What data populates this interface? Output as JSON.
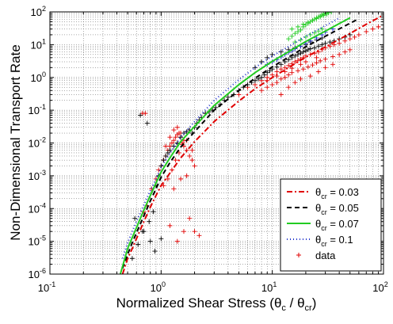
{
  "chart_data": {
    "type": "scatter",
    "title": "",
    "xlabel": {
      "base": "Normalized Shear Stress (θ",
      "sub1": "c",
      "mid": " / θ",
      "sub2": "cr",
      "end": ")"
    },
    "ylabel": "Non-Dimensional Transport Rate",
    "x_scale": "log",
    "y_scale": "log",
    "xlim": [
      0.1,
      100
    ],
    "ylim": [
      1e-06,
      100
    ],
    "x_ticks": [
      {
        "value": 0.1,
        "base": "10",
        "exp": "-1"
      },
      {
        "value": 1,
        "base": "10",
        "exp": "0"
      },
      {
        "value": 10,
        "base": "10",
        "exp": "1"
      },
      {
        "value": 100,
        "base": "10",
        "exp": "2"
      }
    ],
    "y_ticks": [
      {
        "value": 1e-06,
        "base": "10",
        "exp": "-6"
      },
      {
        "value": 1e-05,
        "base": "10",
        "exp": "-5"
      },
      {
        "value": 0.0001,
        "base": "10",
        "exp": "-4"
      },
      {
        "value": 0.001,
        "base": "10",
        "exp": "-3"
      },
      {
        "value": 0.01,
        "base": "10",
        "exp": "-2"
      },
      {
        "value": 0.1,
        "base": "10",
        "exp": "-1"
      },
      {
        "value": 1,
        "base": "10",
        "exp": "0"
      },
      {
        "value": 10,
        "base": "10",
        "exp": "1"
      },
      {
        "value": 100,
        "base": "10",
        "exp": "2"
      }
    ],
    "grid": true,
    "legend_position": "bottom-right",
    "series": [
      {
        "kind": "line",
        "theta_cr": 0.03,
        "label": {
          "pre": "θ",
          "sub": "cr",
          "post": " = 0.03"
        },
        "color": "#e00000",
        "dash": "7,3,2,3",
        "x": [
          0.45,
          0.5,
          0.55,
          0.6,
          0.7,
          0.8,
          0.9,
          1.0,
          1.2,
          1.5,
          2,
          3,
          5,
          7,
          10,
          15,
          20,
          30,
          50,
          70,
          100
        ],
        "y": [
          1e-06,
          3e-06,
          6e-06,
          1.2e-05,
          4e-05,
          0.00011,
          0.00025,
          0.0005,
          0.0012,
          0.0035,
          0.011,
          0.045,
          0.19,
          0.45,
          1.0,
          2.3,
          4.2,
          8.5,
          22,
          42,
          80
        ]
      },
      {
        "kind": "line",
        "theta_cr": 0.05,
        "label": {
          "pre": "θ",
          "sub": "cr",
          "post": " = 0.05"
        },
        "color": "#000000",
        "dash": "6,4",
        "x": [
          0.45,
          0.5,
          0.55,
          0.6,
          0.7,
          0.8,
          0.9,
          1.0,
          1.2,
          1.5,
          2,
          3,
          5,
          7,
          10,
          15,
          20,
          30,
          50,
          60
        ],
        "y": [
          1.5e-06,
          4e-06,
          9e-06,
          1.8e-05,
          6e-05,
          0.00017,
          0.0004,
          0.0009,
          0.0025,
          0.0075,
          0.022,
          0.1,
          0.4,
          0.95,
          2.1,
          4.8,
          8.6,
          18,
          45,
          62
        ]
      },
      {
        "kind": "line",
        "theta_cr": 0.07,
        "label": {
          "pre": "θ",
          "sub": "cr",
          "post": " = 0.07"
        },
        "color": "#22cc22",
        "dash": "",
        "x": [
          0.43,
          0.5,
          0.55,
          0.6,
          0.7,
          0.8,
          0.9,
          1.0,
          1.2,
          1.5,
          2,
          3,
          5,
          7,
          10,
          15,
          20,
          30,
          40,
          50
        ],
        "y": [
          1e-06,
          6e-06,
          1.3e-05,
          2.6e-05,
          9e-05,
          0.00025,
          0.0006,
          0.0013,
          0.0035,
          0.011,
          0.032,
          0.14,
          0.6,
          1.4,
          3.1,
          7,
          12.5,
          26,
          44,
          66
        ]
      },
      {
        "kind": "line",
        "theta_cr": 0.1,
        "label": {
          "pre": "θ",
          "sub": "cr",
          "post": " = 0.1"
        },
        "color": "#2233cc",
        "dash": "1,3",
        "x": [
          0.45,
          0.5,
          0.55,
          0.6,
          0.7,
          0.8,
          0.9,
          1.0,
          1.2,
          1.5,
          2,
          3,
          5,
          7,
          10,
          15,
          20,
          30,
          40
        ],
        "y": [
          3e-06,
          9e-06,
          2e-05,
          4e-05,
          0.00013,
          0.00035,
          0.0008,
          0.0018,
          0.0048,
          0.015,
          0.045,
          0.2,
          0.85,
          2.0,
          4.5,
          10,
          18,
          38,
          65
        ]
      },
      {
        "kind": "scatter",
        "label": "data",
        "color": "#e00000",
        "x": [
          0.7,
          0.75,
          0.82,
          0.9,
          0.95,
          1.0,
          1.05,
          1.1,
          1.15,
          1.2,
          1.25,
          1.3,
          1.35,
          1.4,
          1.45,
          1.5,
          1.55,
          1.6,
          1.7,
          1.8,
          1.9,
          2.0,
          1.1,
          1.2,
          1.3,
          1.4,
          1.5,
          1.6,
          1.25,
          1.35,
          1.45,
          1.55,
          1.7,
          1.9,
          1.05,
          1.15,
          1.3,
          1.5,
          1.7,
          0.68,
          0.72,
          1.2,
          1.4,
          1.6,
          1.8,
          2.0,
          2.2,
          5,
          6,
          7,
          8,
          9,
          10,
          11,
          12,
          13,
          14,
          15,
          16,
          17,
          18,
          19,
          20,
          22,
          24,
          26,
          28,
          30,
          33,
          36,
          40,
          45,
          50,
          55,
          60,
          70,
          80,
          90,
          8,
          9,
          10,
          11,
          12,
          13,
          14,
          15,
          17,
          19,
          21,
          23,
          25,
          27,
          30,
          35,
          40,
          45,
          50,
          9,
          11,
          13,
          15,
          18,
          20,
          25,
          12,
          14,
          16,
          18,
          22,
          26,
          30,
          35
        ],
        "y": [
          8e-05,
          0.00012,
          0.0004,
          0.0008,
          0.0015,
          0.002,
          0.003,
          0.004,
          0.006,
          0.008,
          0.01,
          0.012,
          0.015,
          0.018,
          0.02,
          0.015,
          0.01,
          0.008,
          0.006,
          0.004,
          0.003,
          0.002,
          0.008,
          0.015,
          0.025,
          0.03,
          0.02,
          0.012,
          0.0015,
          0.003,
          0.005,
          0.009,
          0.012,
          0.006,
          0.0005,
          0.0008,
          0.0004,
          0.0008,
          0.001,
          0.08,
          0.08,
          3e-05,
          1e-05,
          2e-05,
          5e-05,
          2e-05,
          1.5e-05,
          0.3,
          0.5,
          0.6,
          0.8,
          1.0,
          1.2,
          1.5,
          1.8,
          2.0,
          2.3,
          2.6,
          3.0,
          3.3,
          3.6,
          4.0,
          4.5,
          5,
          5.5,
          6,
          7,
          8,
          9,
          10,
          11,
          13,
          15,
          17,
          20,
          25,
          30,
          35,
          0.4,
          0.5,
          0.6,
          0.7,
          0.9,
          1.0,
          1.2,
          1.4,
          1.6,
          1.8,
          2.1,
          2.4,
          2.8,
          3.2,
          3.6,
          4.3,
          5,
          6,
          7,
          0.8,
          1.1,
          1.5,
          1.9,
          2.5,
          3.0,
          4.0,
          0.3,
          0.5,
          0.7,
          0.9,
          1.1,
          1.5,
          2.0,
          2.5
        ]
      },
      {
        "kind": "scatter",
        "label": "",
        "color": "#000000",
        "x": [
          0.55,
          0.62,
          0.7,
          0.78,
          0.85,
          0.9,
          0.95,
          1.0,
          1.05,
          1.1,
          1.15,
          1.2,
          1.3,
          1.4,
          1.5,
          1.6,
          1.7,
          1.8,
          1.9,
          2.0,
          2.1,
          2.2,
          2.3,
          2.5,
          2.7,
          2.9,
          3.1,
          3.4,
          3.7,
          4,
          4.5,
          5,
          5.5,
          6,
          6.5,
          7,
          7.5,
          8,
          8.5,
          9,
          9.5,
          10,
          11,
          12,
          13,
          14,
          15,
          16,
          17,
          18,
          19,
          20,
          21,
          22,
          24,
          26,
          28,
          30,
          33,
          36,
          40,
          45,
          50,
          0.65,
          0.75,
          0.58,
          0.68,
          0.8,
          0.88,
          1.0,
          7,
          8,
          9,
          10,
          12,
          14,
          16,
          18,
          20,
          22,
          25,
          28
        ],
        "y": [
          3e-06,
          8e-06,
          2e-05,
          4e-05,
          8e-05,
          0.0005,
          0.001,
          0.002,
          0.003,
          0.004,
          0.005,
          0.006,
          0.008,
          0.01,
          0.015,
          0.02,
          0.022,
          0.025,
          0.02,
          0.03,
          0.04,
          0.05,
          0.06,
          0.08,
          0.09,
          0.1,
          0.12,
          0.15,
          0.2,
          0.25,
          0.3,
          0.4,
          0.5,
          0.6,
          0.7,
          0.8,
          0.9,
          1.0,
          1.2,
          1.4,
          1.6,
          1.8,
          2.1,
          2.5,
          3,
          3.5,
          4,
          4.5,
          5,
          5.5,
          6,
          6.5,
          7,
          7.5,
          8,
          9,
          10,
          11,
          12,
          13,
          15,
          17,
          20,
          0.07,
          0.04,
          5e-05,
          2e-05,
          1e-05,
          5e-06,
          1.2e-05,
          2,
          3,
          4,
          5,
          6,
          7,
          8,
          9,
          10,
          12,
          14,
          16
        ]
      },
      {
        "kind": "scatter",
        "label": "",
        "color": "#22cc22",
        "x": [
          14,
          15,
          16,
          17,
          18,
          19,
          20,
          21,
          22,
          23,
          24,
          25,
          26,
          27,
          28,
          29,
          30,
          32,
          34,
          15,
          17,
          19,
          21,
          23,
          25,
          27,
          29,
          31,
          16,
          18,
          20,
          22,
          24,
          26,
          28
        ],
        "y": [
          15,
          18,
          22,
          25,
          28,
          35,
          40,
          45,
          50,
          55,
          60,
          65,
          70,
          75,
          80,
          85,
          90,
          95,
          99,
          30,
          35,
          42,
          48,
          55,
          62,
          70,
          78,
          86,
          12,
          14,
          17,
          20,
          23,
          26,
          30
        ]
      },
      {
        "kind": "scatter",
        "label": "",
        "color": "#2233cc",
        "x": [
          9,
          10,
          11,
          12,
          13,
          14,
          15,
          16,
          18,
          20,
          22,
          25,
          28,
          30,
          35
        ],
        "y": [
          2.5,
          3,
          3.5,
          4.2,
          5,
          5.8,
          6.5,
          7.5,
          9,
          11,
          13,
          16,
          20,
          24,
          30
        ]
      }
    ]
  }
}
